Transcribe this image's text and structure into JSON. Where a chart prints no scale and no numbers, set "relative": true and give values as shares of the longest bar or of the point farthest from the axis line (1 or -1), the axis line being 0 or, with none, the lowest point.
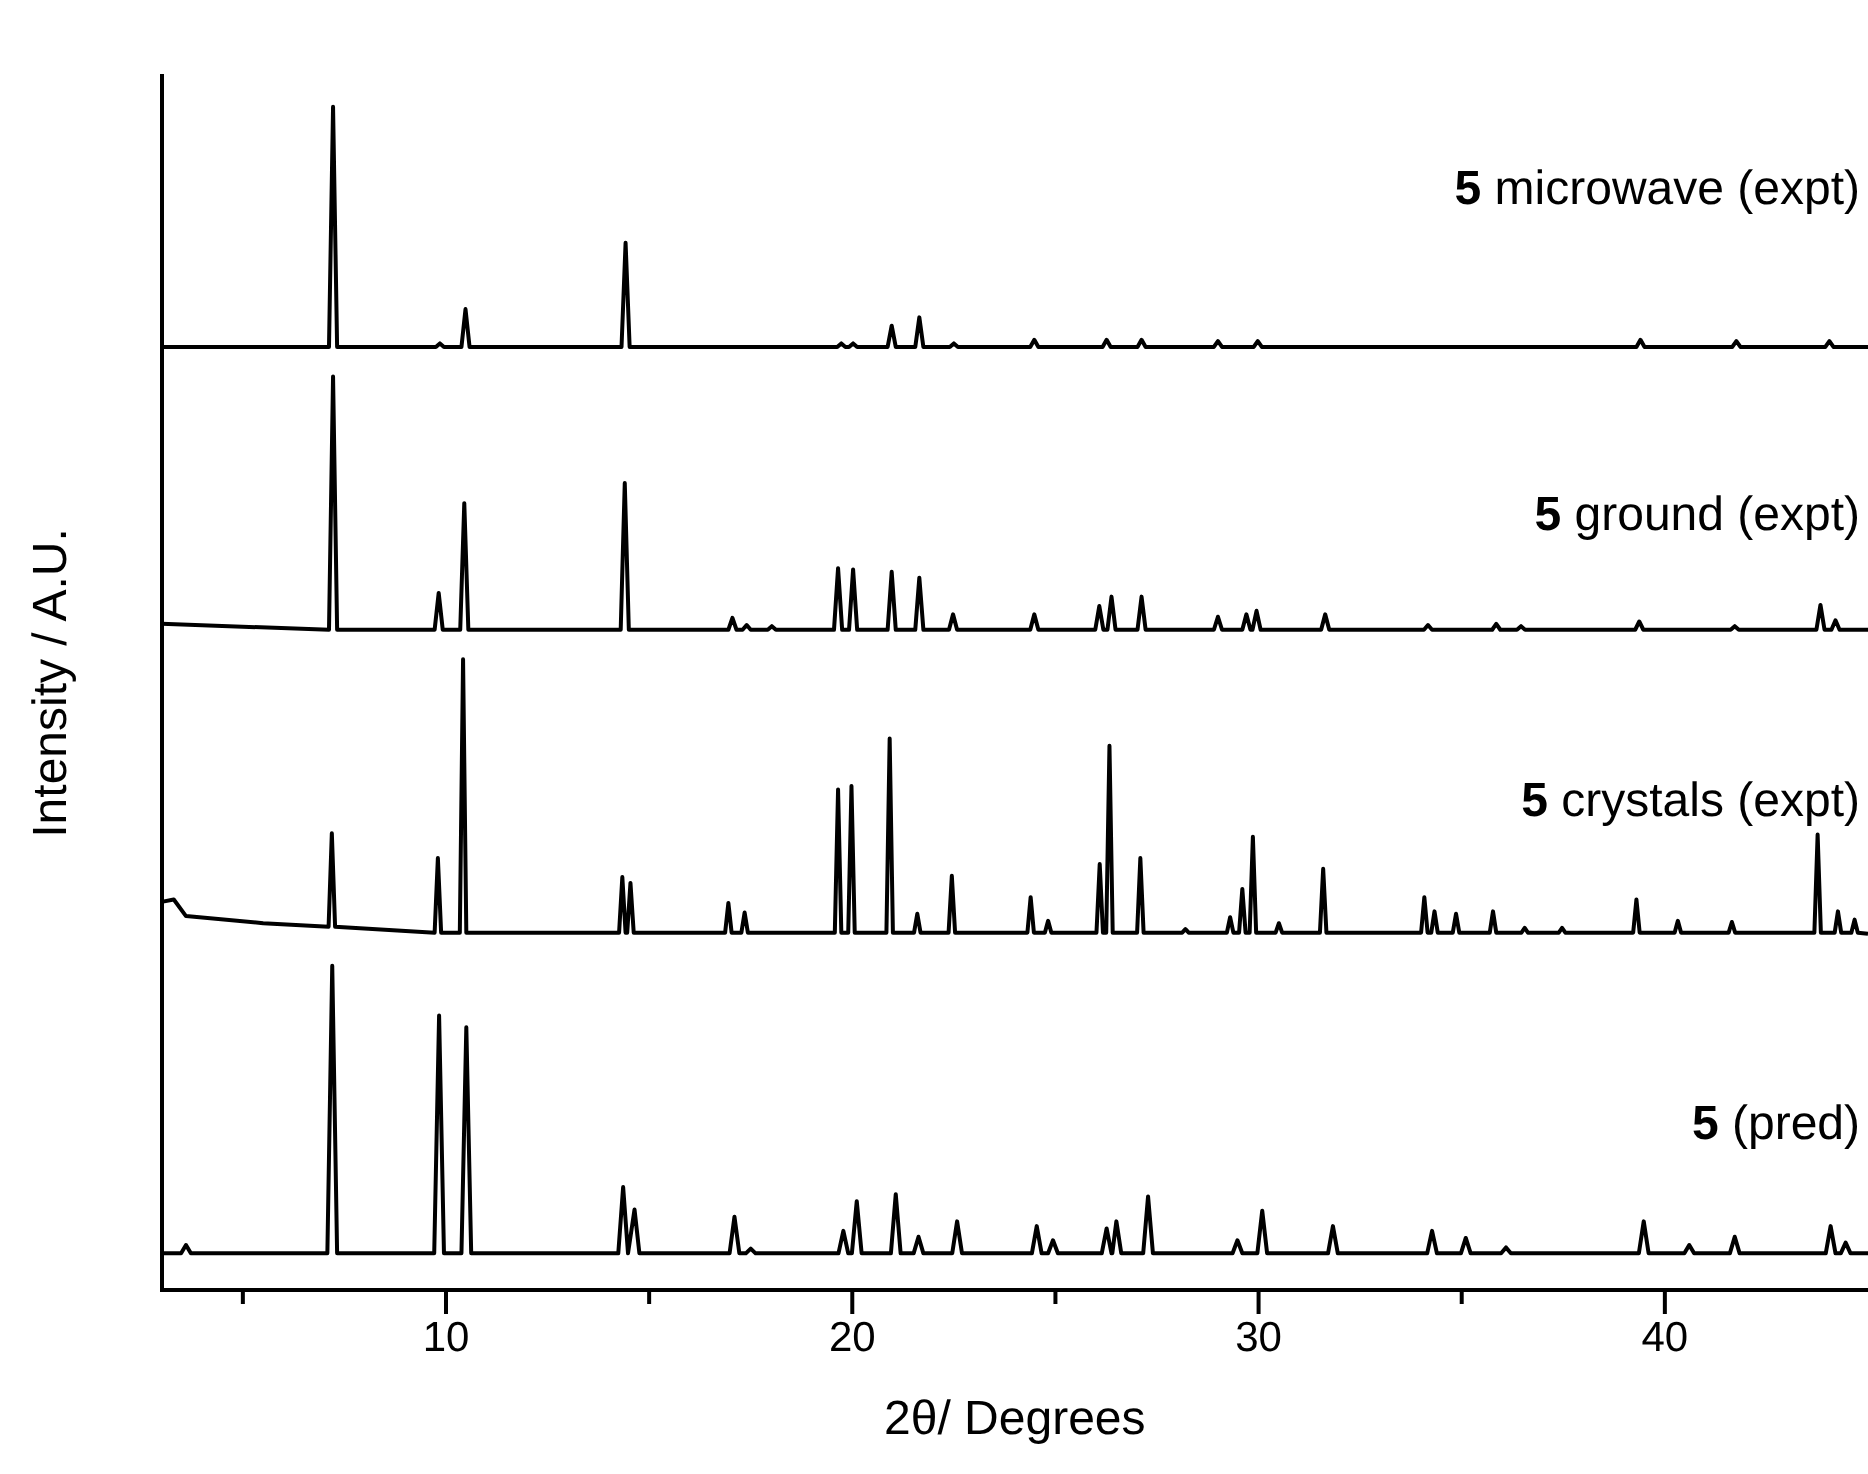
{
  "chart_data": {
    "type": "line",
    "xlabel": "2θ/ Degrees",
    "ylabel": "Intensity / A.U.",
    "relative": true,
    "legend": false,
    "xlim": [
      3,
      45
    ],
    "xticks": [
      {
        "value": 5,
        "label": null
      },
      10,
      {
        "value": 15,
        "label": null
      },
      20,
      {
        "value": 25,
        "label": null
      },
      30,
      {
        "value": 35,
        "label": null
      },
      40
    ],
    "series": [
      {
        "name": "5 microwave (expt)",
        "color": "#000000",
        "x": [
          3,
          7.12,
          7.22,
          7.32,
          9.75,
          9.85,
          9.95,
          10.38,
          10.48,
          10.58,
          14.32,
          14.42,
          14.52,
          19.63,
          19.73,
          19.83,
          19.92,
          20.02,
          20.12,
          20.87,
          20.97,
          21.07,
          21.55,
          21.65,
          21.75,
          22.4,
          22.5,
          22.6,
          24.38,
          24.48,
          24.58,
          26.16,
          26.26,
          26.36,
          27.02,
          27.12,
          27.22,
          28.9,
          29.0,
          29.1,
          29.88,
          29.98,
          30.08,
          39.3,
          39.4,
          39.5,
          41.66,
          41.76,
          41.86,
          43.95,
          44.05,
          44.15,
          45
        ],
        "values": [
          0.797,
          0.797,
          1,
          0.797,
          0.797,
          0.8,
          0.797,
          0.797,
          0.829,
          0.797,
          0.797,
          0.885,
          0.797,
          0.797,
          0.8,
          0.797,
          0.797,
          0.8,
          0.797,
          0.797,
          0.815,
          0.797,
          0.797,
          0.822,
          0.797,
          0.797,
          0.8,
          0.797,
          0.797,
          0.803,
          0.797,
          0.797,
          0.803,
          0.797,
          0.797,
          0.803,
          0.797,
          0.797,
          0.802,
          0.797,
          0.797,
          0.802,
          0.797,
          0.797,
          0.803,
          0.797,
          0.797,
          0.802,
          0.797,
          0.797,
          0.802,
          0.797,
          0.797
        ]
      },
      {
        "name": "5 ground (expt)",
        "color": "#000000",
        "x": [
          3,
          7.12,
          7.22,
          7.32,
          9.72,
          9.82,
          9.92,
          10.35,
          10.45,
          10.55,
          14.3,
          14.4,
          14.5,
          16.95,
          17.05,
          17.15,
          17.3,
          17.4,
          17.5,
          17.92,
          18.02,
          18.12,
          19.55,
          19.65,
          19.75,
          19.92,
          20.02,
          20.12,
          20.87,
          20.97,
          21.07,
          21.55,
          21.65,
          21.75,
          22.38,
          22.48,
          22.58,
          24.38,
          24.48,
          24.58,
          25.98,
          26.08,
          26.18,
          26.28,
          26.38,
          26.48,
          27.02,
          27.12,
          27.22,
          28.9,
          29.0,
          29.1,
          29.6,
          29.7,
          29.8,
          29.85,
          29.95,
          30.05,
          31.54,
          31.64,
          31.74,
          34.07,
          34.17,
          34.27,
          35.75,
          35.85,
          35.95,
          36.36,
          36.46,
          36.56,
          39.27,
          39.37,
          39.47,
          41.62,
          41.72,
          41.82,
          43.73,
          43.83,
          43.93,
          44.1,
          44.2,
          44.3,
          45
        ],
        "values": [
          0.563,
          0.558,
          0.772,
          0.558,
          0.558,
          0.589,
          0.558,
          0.558,
          0.665,
          0.558,
          0.558,
          0.682,
          0.558,
          0.558,
          0.568,
          0.558,
          0.558,
          0.562,
          0.558,
          0.558,
          0.561,
          0.558,
          0.558,
          0.61,
          0.558,
          0.558,
          0.609,
          0.558,
          0.558,
          0.607,
          0.558,
          0.558,
          0.602,
          0.558,
          0.558,
          0.571,
          0.558,
          0.558,
          0.571,
          0.558,
          0.558,
          0.578,
          0.558,
          0.558,
          0.586,
          0.558,
          0.558,
          0.586,
          0.558,
          0.558,
          0.569,
          0.558,
          0.558,
          0.571,
          0.558,
          0.558,
          0.574,
          0.558,
          0.558,
          0.571,
          0.558,
          0.558,
          0.562,
          0.558,
          0.558,
          0.563,
          0.558,
          0.558,
          0.561,
          0.558,
          0.558,
          0.565,
          0.558,
          0.558,
          0.561,
          0.558,
          0.558,
          0.579,
          0.558,
          0.558,
          0.566,
          0.558,
          0.558
        ]
      },
      {
        "name": "5 crystals (expt)",
        "color": "#000000",
        "x": [
          3,
          3.3,
          3.6,
          5.5,
          7.11,
          7.19,
          7.27,
          9.72,
          9.8,
          9.88,
          10.34,
          10.42,
          10.5,
          14.26,
          14.34,
          14.42,
          14.46,
          14.54,
          14.62,
          16.87,
          16.95,
          17.03,
          17.27,
          17.35,
          17.43,
          19.57,
          19.65,
          19.73,
          19.9,
          19.98,
          20.06,
          20.84,
          20.92,
          21.0,
          21.52,
          21.6,
          21.68,
          22.37,
          22.45,
          22.53,
          24.31,
          24.39,
          24.47,
          24.74,
          24.82,
          24.9,
          26.01,
          26.09,
          26.17,
          26.25,
          26.33,
          26.41,
          27.01,
          27.09,
          27.17,
          28.12,
          28.2,
          28.28,
          29.22,
          29.3,
          29.38,
          29.52,
          29.6,
          29.68,
          29.78,
          29.86,
          29.94,
          30.42,
          30.5,
          30.58,
          31.51,
          31.59,
          31.67,
          34.0,
          34.08,
          34.16,
          34.25,
          34.33,
          34.41,
          34.78,
          34.86,
          34.94,
          35.69,
          35.77,
          35.85,
          36.47,
          36.55,
          36.63,
          37.39,
          37.47,
          37.55,
          39.22,
          39.3,
          39.38,
          40.24,
          40.32,
          40.4,
          41.57,
          41.65,
          41.73,
          43.68,
          43.76,
          43.84,
          44.18,
          44.26,
          44.34,
          44.59,
          44.67,
          44.75,
          45
        ],
        "values": [
          0.328,
          0.33,
          0.316,
          0.31,
          0.307,
          0.386,
          0.307,
          0.302,
          0.365,
          0.302,
          0.302,
          0.533,
          0.302,
          0.302,
          0.349,
          0.302,
          0.302,
          0.344,
          0.302,
          0.302,
          0.327,
          0.302,
          0.302,
          0.319,
          0.302,
          0.302,
          0.423,
          0.302,
          0.302,
          0.426,
          0.302,
          0.302,
          0.466,
          0.302,
          0.302,
          0.318,
          0.302,
          0.302,
          0.35,
          0.302,
          0.302,
          0.332,
          0.302,
          0.302,
          0.312,
          0.302,
          0.302,
          0.36,
          0.302,
          0.302,
          0.46,
          0.302,
          0.302,
          0.365,
          0.302,
          0.302,
          0.305,
          0.302,
          0.302,
          0.315,
          0.302,
          0.302,
          0.339,
          0.302,
          0.302,
          0.383,
          0.302,
          0.302,
          0.31,
          0.302,
          0.302,
          0.356,
          0.302,
          0.302,
          0.332,
          0.302,
          0.302,
          0.32,
          0.302,
          0.302,
          0.318,
          0.302,
          0.302,
          0.32,
          0.302,
          0.302,
          0.306,
          0.302,
          0.302,
          0.306,
          0.302,
          0.302,
          0.33,
          0.302,
          0.302,
          0.312,
          0.302,
          0.302,
          0.311,
          0.302,
          0.302,
          0.385,
          0.302,
          0.302,
          0.32,
          0.302,
          0.302,
          0.313,
          0.302,
          0.301
        ]
      },
      {
        "name": "5 (pred)",
        "color": "#000000",
        "x": [
          3,
          3.48,
          3.6,
          3.72,
          7.08,
          7.2,
          7.32,
          9.71,
          9.83,
          9.95,
          10.38,
          10.5,
          10.62,
          14.24,
          14.36,
          14.48,
          14.52,
          14.64,
          14.76,
          16.98,
          17.1,
          17.22,
          17.38,
          17.5,
          17.62,
          19.66,
          19.78,
          19.9,
          19.99,
          20.11,
          20.23,
          20.95,
          21.07,
          21.19,
          21.51,
          21.63,
          21.75,
          22.46,
          22.58,
          22.7,
          24.42,
          24.54,
          24.66,
          24.82,
          24.94,
          25.06,
          26.14,
          26.26,
          26.38,
          26.4,
          26.5,
          26.62,
          27.16,
          27.28,
          27.4,
          29.36,
          29.48,
          29.6,
          29.97,
          30.09,
          30.21,
          31.71,
          31.83,
          31.95,
          34.15,
          34.27,
          34.39,
          34.98,
          35.1,
          35.22,
          35.97,
          36.09,
          36.21,
          39.36,
          39.48,
          39.6,
          40.48,
          40.6,
          40.72,
          41.6,
          41.72,
          41.84,
          43.96,
          44.08,
          44.2,
          44.33,
          44.45,
          44.57,
          45
        ],
        "values": [
          0.031,
          0.031,
          0.038,
          0.031,
          0.031,
          0.274,
          0.031,
          0.031,
          0.232,
          0.031,
          0.031,
          0.222,
          0.031,
          0.031,
          0.087,
          0.031,
          0.031,
          0.068,
          0.031,
          0.031,
          0.062,
          0.031,
          0.031,
          0.035,
          0.031,
          0.031,
          0.05,
          0.031,
          0.031,
          0.075,
          0.031,
          0.031,
          0.081,
          0.031,
          0.031,
          0.045,
          0.031,
          0.031,
          0.058,
          0.031,
          0.031,
          0.054,
          0.031,
          0.031,
          0.042,
          0.031,
          0.031,
          0.052,
          0.031,
          0.031,
          0.058,
          0.031,
          0.031,
          0.079,
          0.031,
          0.031,
          0.042,
          0.031,
          0.031,
          0.067,
          0.031,
          0.031,
          0.054,
          0.031,
          0.031,
          0.05,
          0.031,
          0.031,
          0.044,
          0.031,
          0.031,
          0.036,
          0.031,
          0.031,
          0.058,
          0.031,
          0.031,
          0.038,
          0.031,
          0.031,
          0.045,
          0.031,
          0.031,
          0.054,
          0.031,
          0.031,
          0.04,
          0.031,
          0.031
        ]
      }
    ]
  }
}
